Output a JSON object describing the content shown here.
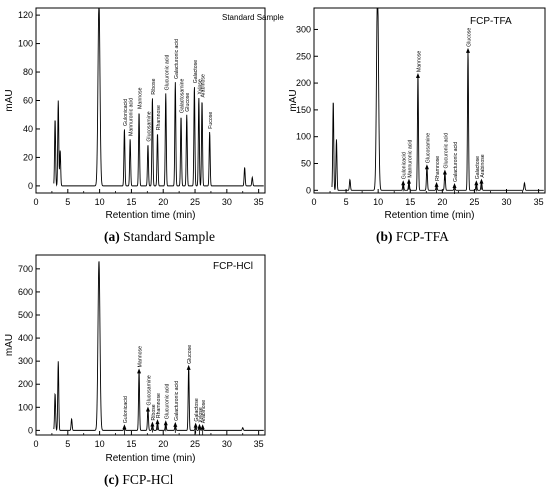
{
  "chart_data": [
    {
      "type": "line",
      "title": "Standard Sample",
      "caption_letter": "(a)",
      "caption_text": "Standard Sample",
      "xlabel": "Retention time (min)",
      "ylabel": "mAU",
      "xlim": [
        0,
        36
      ],
      "ylim": [
        -5,
        125
      ],
      "xticks": [
        "0",
        "5",
        "10",
        "15",
        "20",
        "25",
        "30",
        "35"
      ],
      "yticks": [
        "0",
        "20",
        "40",
        "60",
        "80",
        "100",
        "120"
      ],
      "peaks": [
        {
          "label": "",
          "x": 3.0,
          "y": 47
        },
        {
          "label": "",
          "x": 3.5,
          "y": 60
        },
        {
          "label": "",
          "x": 3.8,
          "y": 25
        },
        {
          "label": "",
          "x": 9.9,
          "y": 130
        },
        {
          "label": "Gulonicacid",
          "x": 13.9,
          "y": 40
        },
        {
          "label": "Mannuronic acid",
          "x": 14.8,
          "y": 33
        },
        {
          "label": "Mannose",
          "x": 16.2,
          "y": 52
        },
        {
          "label": "Glucosamine",
          "x": 17.6,
          "y": 29
        },
        {
          "label": "Ribose",
          "x": 18.3,
          "y": 62
        },
        {
          "label": "Rhamnose",
          "x": 19.1,
          "y": 37
        },
        {
          "label": "Glucuronic acid",
          "x": 20.4,
          "y": 65
        },
        {
          "label": "Galacturonic acid",
          "x": 21.9,
          "y": 73
        },
        {
          "label": "Galactosamine",
          "x": 22.8,
          "y": 49
        },
        {
          "label": "Glucose",
          "x": 23.7,
          "y": 50
        },
        {
          "label": "Galactose",
          "x": 24.9,
          "y": 70
        },
        {
          "label": "Xylose",
          "x": 25.6,
          "y": 62
        },
        {
          "label": "Arabinose",
          "x": 26.1,
          "y": 60
        },
        {
          "label": "Fucose",
          "x": 27.3,
          "y": 38
        },
        {
          "label": "",
          "x": 32.8,
          "y": 13
        },
        {
          "label": "",
          "x": 34.0,
          "y": 6
        }
      ]
    },
    {
      "type": "line",
      "title": "FCP-TFA",
      "caption_letter": "(b)",
      "caption_text": "FCP-TFA",
      "xlabel": "Retention time (min)",
      "ylabel": "mAU",
      "xlim": [
        0,
        36
      ],
      "ylim": [
        -5,
        340
      ],
      "xticks": [
        "0",
        "5",
        "10",
        "15",
        "20",
        "25",
        "30",
        "35"
      ],
      "yticks": [
        "0",
        "50",
        "100",
        "150",
        "200",
        "250",
        "300"
      ],
      "peaks": [
        {
          "label": "",
          "x": 3.0,
          "y": 167
        },
        {
          "label": "",
          "x": 3.5,
          "y": 95
        },
        {
          "label": "",
          "x": 5.6,
          "y": 20
        },
        {
          "label": "",
          "x": 9.9,
          "y": 380
        },
        {
          "label": "Gulonicacid",
          "x": 13.9,
          "y": 15
        },
        {
          "label": "Mannuronic acid",
          "x": 14.8,
          "y": 18
        },
        {
          "label": "Mannose",
          "x": 16.2,
          "y": 215
        },
        {
          "label": "Glucosamine",
          "x": 17.6,
          "y": 45
        },
        {
          "label": "Rhamnose",
          "x": 19.1,
          "y": 12
        },
        {
          "label": "Glucuronic acid",
          "x": 20.4,
          "y": 35
        },
        {
          "label": "Galacturonic acid",
          "x": 21.9,
          "y": 10
        },
        {
          "label": "Glucose",
          "x": 24.0,
          "y": 262
        },
        {
          "label": "Galactose",
          "x": 25.3,
          "y": 15
        },
        {
          "label": "Arabinose",
          "x": 26.1,
          "y": 18
        },
        {
          "label": "",
          "x": 32.8,
          "y": 14
        }
      ]
    },
    {
      "type": "line",
      "title": "FCP-HCl",
      "caption_letter": "(c)",
      "caption_text": "FCP-HCl",
      "xlabel": "Retention time (min)",
      "ylabel": "mAU",
      "xlim": [
        0,
        36
      ],
      "ylim": [
        -20,
        760
      ],
      "xticks": [
        "0",
        "5",
        "10",
        "15",
        "20",
        "25",
        "30",
        "35"
      ],
      "yticks": [
        "0",
        "100",
        "200",
        "300",
        "400",
        "500",
        "600",
        "700"
      ],
      "peaks": [
        {
          "label": "",
          "x": 3.0,
          "y": 160
        },
        {
          "label": "",
          "x": 3.5,
          "y": 300
        },
        {
          "label": "",
          "x": 5.6,
          "y": 50
        },
        {
          "label": "",
          "x": 9.9,
          "y": 735
        },
        {
          "label": "Gulonicacid",
          "x": 13.9,
          "y": 18
        },
        {
          "label": "Mannose",
          "x": 16.2,
          "y": 260
        },
        {
          "label": "Glucosamine",
          "x": 17.6,
          "y": 95
        },
        {
          "label": "Ribose",
          "x": 18.3,
          "y": 30
        },
        {
          "label": "Rhamnose",
          "x": 19.1,
          "y": 40
        },
        {
          "label": "Glucuronic acid",
          "x": 20.4,
          "y": 35
        },
        {
          "label": "Galacturonic acid",
          "x": 21.9,
          "y": 28
        },
        {
          "label": "Glucose",
          "x": 24.0,
          "y": 275
        },
        {
          "label": "Galactose",
          "x": 25.1,
          "y": 25
        },
        {
          "label": "Xylose",
          "x": 25.7,
          "y": 20
        },
        {
          "label": "Arabinose",
          "x": 26.2,
          "y": 18
        },
        {
          "label": "",
          "x": 32.5,
          "y": 12
        }
      ]
    }
  ]
}
